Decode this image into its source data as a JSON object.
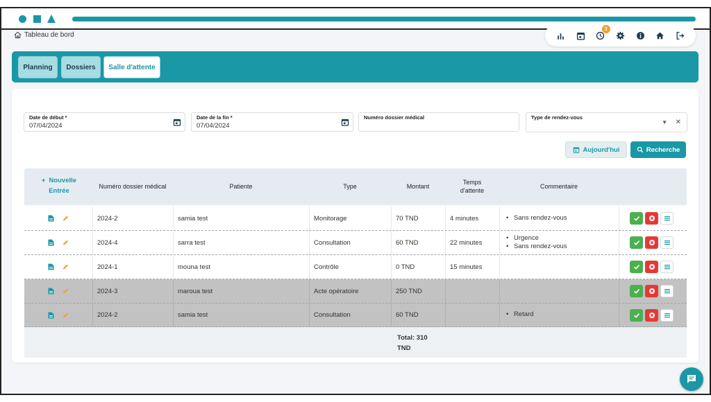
{
  "colors": {
    "accent": "#1a98a6",
    "success": "#4caf50",
    "danger": "#e53935",
    "edit": "#f0a030"
  },
  "breadcrumb": {
    "label": "Tableau de bord"
  },
  "toolbar": {
    "icons": [
      "chart-icon",
      "calendar-icon",
      "clock-icon",
      "gear-icon",
      "info-icon",
      "home-icon",
      "logout-icon"
    ],
    "clock_badge": "3"
  },
  "tabs": [
    {
      "label": "Planning",
      "active": false
    },
    {
      "label": "Dossiers",
      "active": false
    },
    {
      "label": "Salle d'attente",
      "active": true
    }
  ],
  "filters": {
    "start_date": {
      "label": "Date de début *",
      "value": "07/04/2024"
    },
    "end_date": {
      "label": "Date de la fin *",
      "value": "07/04/2024"
    },
    "file_number": {
      "label": "Numéro dossier médical",
      "value": ""
    },
    "appointment_type": {
      "label": "Type de rendez-vous",
      "value": ""
    },
    "today_button": "Aujourd'hui",
    "search_button": "Recherche"
  },
  "table": {
    "new_entry_label": [
      "Nouvelle",
      "Entrée"
    ],
    "columns": [
      "Numéro dossier médical",
      "Patiente",
      "Type",
      "Montant",
      "Temps d'attente",
      "Commentaire"
    ],
    "rows": [
      {
        "file": "2024-2",
        "patient": "samia test",
        "type": "Monitorage",
        "amount": "70 TND",
        "wait": "4 minutes",
        "comments": [
          "Sans rendez-vous"
        ],
        "grey": false
      },
      {
        "file": "2024-4",
        "patient": "sarra test",
        "type": "Consultation",
        "amount": "60 TND",
        "wait": "22 minutes",
        "comments": [
          "Urgence",
          "Sans rendez-vous"
        ],
        "grey": false
      },
      {
        "file": "2024-1",
        "patient": "mouna test",
        "type": "Contrôle",
        "amount": "0 TND",
        "wait": "15 minutes",
        "comments": [],
        "grey": false
      },
      {
        "file": "2024-3",
        "patient": "maroua test",
        "type": "Acte opératoire",
        "amount": "250 TND",
        "wait": "",
        "comments": [],
        "grey": true
      },
      {
        "file": "2024-2",
        "patient": "samia test",
        "type": "Consultation",
        "amount": "60 TND",
        "wait": "",
        "comments": [
          "Retard"
        ],
        "grey": true
      }
    ],
    "total": [
      "Total: 310",
      "TND"
    ]
  }
}
